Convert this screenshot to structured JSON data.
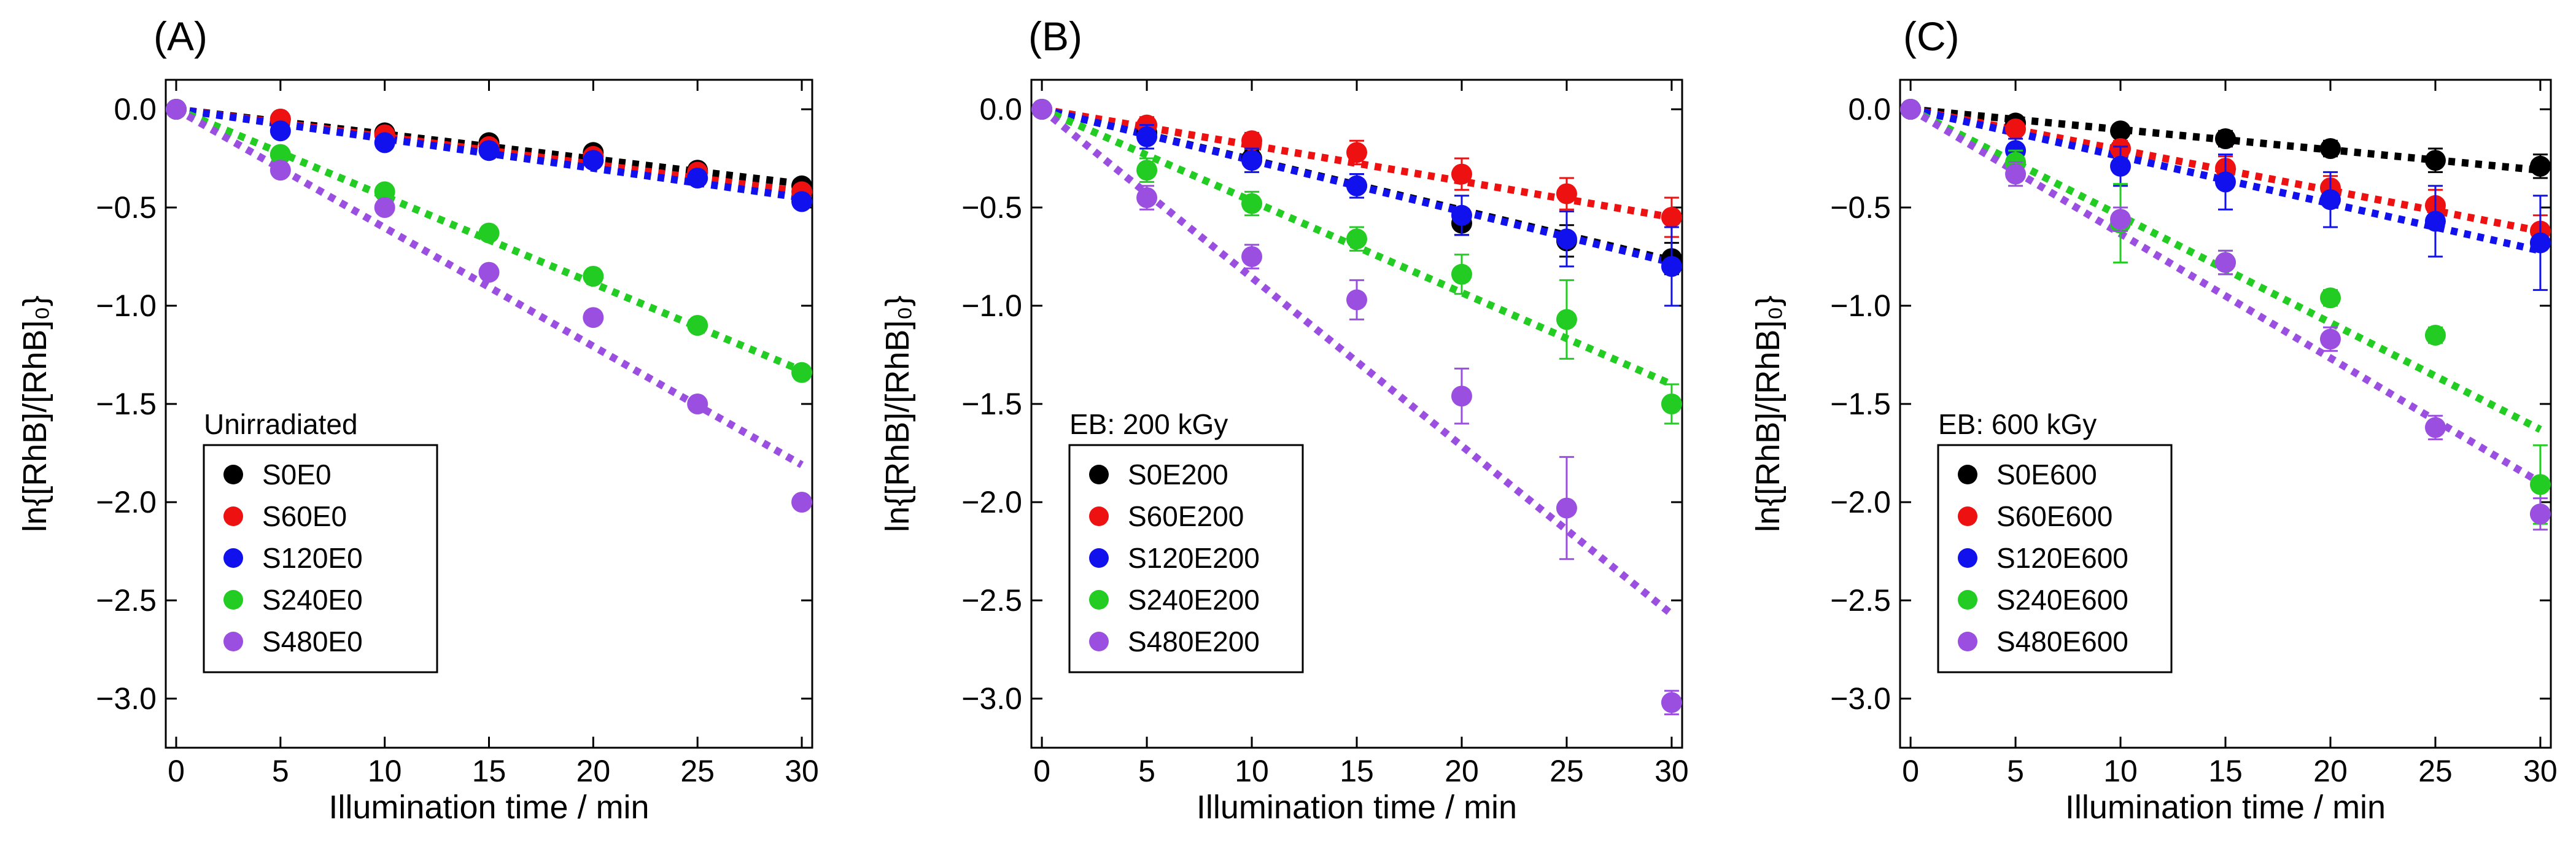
{
  "chart_data": [
    {
      "type": "scatter",
      "panel_label": "(A)",
      "xlabel": "Illumination time / min",
      "ylabel": "ln{[RhB]/[RhB]₀}",
      "xlim": [
        -0.5,
        30.5
      ],
      "ylim": [
        -3.25,
        0.15
      ],
      "xticks": [
        0,
        5,
        10,
        15,
        20,
        25,
        30
      ],
      "yticks": [
        0.0,
        -0.5,
        -1.0,
        -1.5,
        -2.0,
        -2.5,
        -3.0
      ],
      "xtick_labels": [
        "0",
        "5",
        "10",
        "15",
        "20",
        "25",
        "30"
      ],
      "ytick_labels": [
        "0.0",
        "−0.5",
        "−1.0",
        "−1.5",
        "−2.0",
        "−2.5",
        "−3.0"
      ],
      "legend_title": "Unirradiated",
      "legend_position": "bottom-left",
      "x": [
        0,
        5,
        10,
        15,
        20,
        25,
        30
      ],
      "series": [
        {
          "name": "S0E0",
          "color": "#000000",
          "values": [
            0,
            -0.05,
            -0.12,
            -0.17,
            -0.22,
            -0.31,
            -0.39
          ],
          "errors": [
            0.02,
            0.02,
            0.03,
            0.03,
            0.03,
            0.03,
            0.03
          ],
          "fit": [
            0,
            -0.38
          ]
        },
        {
          "name": "S60E0",
          "color": "#ee1111",
          "values": [
            0,
            -0.05,
            -0.13,
            -0.19,
            -0.24,
            -0.32,
            -0.42
          ],
          "errors": [
            0.02,
            0.02,
            0.02,
            0.02,
            0.02,
            0.02,
            0.02
          ],
          "fit": [
            0,
            -0.42
          ]
        },
        {
          "name": "S120E0",
          "color": "#1111ee",
          "values": [
            0,
            -0.11,
            -0.17,
            -0.21,
            -0.26,
            -0.35,
            -0.47
          ],
          "errors": [
            0.02,
            0.02,
            0.02,
            0.02,
            0.02,
            0.02,
            0.02
          ],
          "fit": [
            0,
            -0.45
          ]
        },
        {
          "name": "S240E0",
          "color": "#22cc22",
          "values": [
            0,
            -0.23,
            -0.42,
            -0.63,
            -0.85,
            -1.1,
            -1.34
          ],
          "errors": [
            0.02,
            0.02,
            0.02,
            0.02,
            0.02,
            0.02,
            0.02
          ],
          "fit": [
            0,
            -1.33
          ]
        },
        {
          "name": "S480E0",
          "color": "#9b4fe0",
          "values": [
            0,
            -0.31,
            -0.5,
            -0.83,
            -1.06,
            -1.5,
            -2.0
          ],
          "errors": [
            0.02,
            0.02,
            0.02,
            0.02,
            0.02,
            0.02,
            0.02
          ],
          "fit": [
            0,
            -1.81
          ]
        }
      ]
    },
    {
      "type": "scatter",
      "panel_label": "(B)",
      "xlabel": "Illumination time / min",
      "ylabel": "ln{[RhB]/[RhB]₀}",
      "xlim": [
        -0.5,
        30.5
      ],
      "ylim": [
        -3.25,
        0.15
      ],
      "xticks": [
        0,
        5,
        10,
        15,
        20,
        25,
        30
      ],
      "yticks": [
        0.0,
        -0.5,
        -1.0,
        -1.5,
        -2.0,
        -2.5,
        -3.0
      ],
      "xtick_labels": [
        "0",
        "5",
        "10",
        "15",
        "20",
        "25",
        "30"
      ],
      "ytick_labels": [
        "0.0",
        "−0.5",
        "−1.0",
        "−1.5",
        "−2.0",
        "−2.5",
        "−3.0"
      ],
      "legend_title": "EB: 200 kGy",
      "legend_position": "bottom-left",
      "x": [
        0,
        5,
        10,
        15,
        20,
        25,
        30
      ],
      "series": [
        {
          "name": "S0E200",
          "color": "#000000",
          "values": [
            0,
            -0.12,
            -0.25,
            -0.39,
            -0.58,
            -0.67,
            -0.76
          ],
          "errors": [
            0.02,
            0.04,
            0.04,
            0.06,
            0.06,
            0.08,
            0.08
          ],
          "fit": [
            0,
            -0.77
          ]
        },
        {
          "name": "S60E200",
          "color": "#ee1111",
          "values": [
            0,
            -0.08,
            -0.16,
            -0.22,
            -0.33,
            -0.43,
            -0.55
          ],
          "errors": [
            0.02,
            0.04,
            0.04,
            0.06,
            0.08,
            0.08,
            0.1
          ],
          "fit": [
            0,
            -0.55
          ]
        },
        {
          "name": "S120E200",
          "color": "#1111ee",
          "values": [
            0,
            -0.14,
            -0.26,
            -0.39,
            -0.54,
            -0.66,
            -0.8
          ],
          "errors": [
            0.02,
            0.06,
            0.06,
            0.06,
            0.1,
            0.14,
            0.2
          ],
          "fit": [
            0,
            -0.78
          ]
        },
        {
          "name": "S240E200",
          "color": "#22cc22",
          "values": [
            0,
            -0.31,
            -0.48,
            -0.66,
            -0.84,
            -1.07,
            -1.5
          ],
          "errors": [
            0.02,
            0.06,
            0.06,
            0.06,
            0.1,
            0.2,
            0.1
          ],
          "fit": [
            0,
            -1.4
          ]
        },
        {
          "name": "S480E200",
          "color": "#9b4fe0",
          "values": [
            0,
            -0.45,
            -0.75,
            -0.97,
            -1.46,
            -2.03,
            -3.02
          ],
          "errors": [
            0.02,
            0.06,
            0.06,
            0.1,
            0.14,
            0.26,
            0.06
          ],
          "fit": [
            0,
            -2.57
          ]
        }
      ]
    },
    {
      "type": "scatter",
      "panel_label": "(C)",
      "xlabel": "Illumination time / min",
      "ylabel": "ln{[RhB]/[RhB]₀}",
      "xlim": [
        -0.5,
        30.5
      ],
      "ylim": [
        -3.25,
        0.15
      ],
      "xticks": [
        0,
        5,
        10,
        15,
        20,
        25,
        30
      ],
      "yticks": [
        0.0,
        -0.5,
        -1.0,
        -1.5,
        -2.0,
        -2.5,
        -3.0
      ],
      "xtick_labels": [
        "0",
        "5",
        "10",
        "15",
        "20",
        "25",
        "30"
      ],
      "ytick_labels": [
        "0.0",
        "−0.5",
        "−1.0",
        "−1.5",
        "−2.0",
        "−2.5",
        "−3.0"
      ],
      "legend_title": "EB: 600 kGy",
      "legend_position": "bottom-left",
      "x": [
        0,
        5,
        10,
        15,
        20,
        25,
        30
      ],
      "series": [
        {
          "name": "S0E600",
          "color": "#000000",
          "values": [
            0,
            -0.07,
            -0.11,
            -0.15,
            -0.2,
            -0.26,
            -0.29
          ],
          "errors": [
            0.02,
            0.03,
            0.03,
            0.04,
            0.04,
            0.06,
            0.06
          ],
          "fit": [
            0,
            -0.31
          ]
        },
        {
          "name": "S60E600",
          "color": "#ee1111",
          "values": [
            0,
            -0.1,
            -0.2,
            -0.3,
            -0.4,
            -0.49,
            -0.62
          ],
          "errors": [
            0.02,
            0.03,
            0.04,
            0.06,
            0.06,
            0.08,
            0.08
          ],
          "fit": [
            0,
            -0.62
          ]
        },
        {
          "name": "S120E600",
          "color": "#1111ee",
          "values": [
            0,
            -0.21,
            -0.29,
            -0.37,
            -0.46,
            -0.57,
            -0.68
          ],
          "errors": [
            0.02,
            0.06,
            0.1,
            0.14,
            0.14,
            0.18,
            0.24
          ],
          "fit": [
            0,
            -0.72
          ]
        },
        {
          "name": "S240E600",
          "color": "#22cc22",
          "values": [
            0,
            -0.27,
            -0.58,
            -0.78,
            -0.96,
            -1.15,
            -1.91
          ],
          "errors": [
            0.02,
            0.06,
            0.2,
            0.06,
            0.04,
            0.04,
            0.2
          ],
          "fit": [
            0,
            -1.63
          ]
        },
        {
          "name": "S480E600",
          "color": "#9b4fe0",
          "values": [
            0,
            -0.33,
            -0.56,
            -0.78,
            -1.17,
            -1.62,
            -2.06
          ],
          "errors": [
            0.02,
            0.06,
            0.06,
            0.06,
            0.06,
            0.06,
            0.08
          ],
          "fit": [
            0,
            -1.9
          ]
        }
      ]
    }
  ]
}
